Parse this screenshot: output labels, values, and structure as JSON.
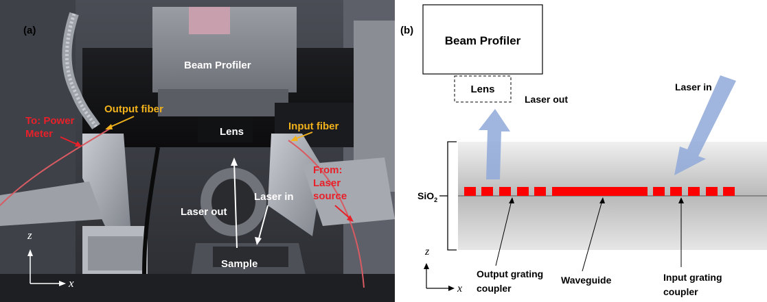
{
  "panel_a": {
    "label": "(a)",
    "beam_profiler": "Beam Profiler",
    "lens": "Lens",
    "output_fiber": "Output fiber",
    "input_fiber": "Input fiber",
    "to_power_meter_line1": "To: Power",
    "to_power_meter_line2": "Meter",
    "from_laser_line1": "From:",
    "from_laser_line2": "Laser",
    "from_laser_line3": "source",
    "laser_out": "Laser out",
    "laser_in": "Laser in",
    "sample": "Sample",
    "axis_z": "z",
    "axis_x": "x"
  },
  "panel_b": {
    "label": "(b)",
    "beam_profiler": "Beam Profiler",
    "lens": "Lens",
    "laser_out": "Laser out",
    "laser_in": "Laser in",
    "sio2_base": "SiO",
    "sio2_sub": "2",
    "output_coupler_line1": "Output grating",
    "output_coupler_line2": "coupler",
    "waveguide": "Waveguide",
    "input_coupler_line1": "Input grating",
    "input_coupler_line2": "coupler",
    "axis_z": "z",
    "axis_x": "x"
  },
  "colors": {
    "orange_label": "#f2b21c",
    "red_label": "#e8202a",
    "waveguide_red": "#ff0000",
    "arrow_blue": "#8fa9d8"
  }
}
